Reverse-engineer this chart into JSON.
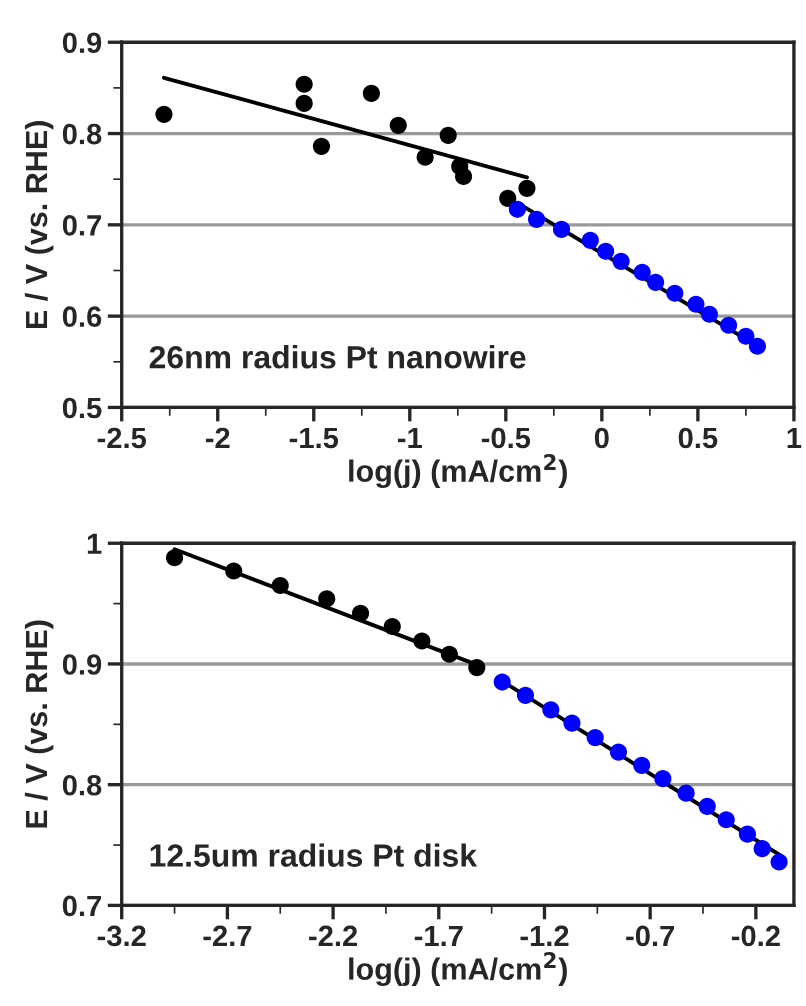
{
  "chart_data": [
    {
      "type": "scatter",
      "xlabel": "log(j) (mA/cm$^{2}$)",
      "ylabel": "E / V (vs. RHE)",
      "annotations": [
        "26nm radius Pt nanowire"
      ],
      "xlim": [
        -2.5,
        1
      ],
      "ylim": [
        0.5,
        0.9
      ],
      "xticks": [
        -2.5,
        -2,
        -1.5,
        -1,
        -0.5,
        0,
        0.5,
        1
      ],
      "yticks": [
        0.5,
        0.6,
        0.7,
        0.8,
        0.9
      ],
      "grid": "y",
      "series": [
        {
          "marker": "circle",
          "color": "#000000",
          "x": [
            -2.28,
            -1.55,
            -1.55,
            -1.46,
            -1.2,
            -1.06,
            -0.92,
            -0.8,
            -0.74,
            -0.72,
            -0.49,
            -0.39
          ],
          "values": [
            0.821,
            0.854,
            0.833,
            0.786,
            0.844,
            0.809,
            0.774,
            0.798,
            0.764,
            0.753,
            0.729,
            0.74
          ]
        },
        {
          "marker": "circle",
          "color": "#0000ff",
          "x": [
            -0.44,
            -0.34,
            -0.21,
            -0.06,
            0.02,
            0.1,
            0.21,
            0.28,
            0.38,
            0.49,
            0.56,
            0.66,
            0.75,
            0.81
          ],
          "values": [
            0.717,
            0.706,
            0.695,
            0.683,
            0.671,
            0.66,
            0.648,
            0.637,
            0.625,
            0.613,
            0.602,
            0.59,
            0.578,
            0.567
          ]
        },
        {
          "type": "line",
          "color": "#000000",
          "x": [
            -2.28,
            -0.39
          ],
          "values": [
            0.861,
            0.752
          ]
        },
        {
          "type": "line",
          "color": "#000000",
          "x": [
            -0.44,
            0.83
          ],
          "values": [
            0.724,
            0.565
          ]
        }
      ]
    },
    {
      "type": "scatter",
      "xlabel": "log(j) (mA/cm$^{2}$)",
      "ylabel": "E / V (vs. RHE)",
      "annotations": [
        "12.5um radius Pt disk"
      ],
      "xlim": [
        -3.2,
        -0.02
      ],
      "ylim": [
        0.7,
        1
      ],
      "xticks": [
        -3.2,
        -2.7,
        -2.2,
        -1.7,
        -1.2,
        -0.7,
        -0.2
      ],
      "yticks": [
        0.7,
        0.8,
        0.9,
        1
      ],
      "grid": "y",
      "series": [
        {
          "marker": "circle",
          "color": "#000000",
          "x": [
            -2.95,
            -2.67,
            -2.45,
            -2.23,
            -2.07,
            -1.92,
            -1.78,
            -1.65,
            -1.52
          ],
          "values": [
            0.988,
            0.977,
            0.965,
            0.954,
            0.942,
            0.931,
            0.919,
            0.908,
            0.897
          ]
        },
        {
          "marker": "circle",
          "color": "#0000ff",
          "x": [
            -1.4,
            -1.29,
            -1.17,
            -1.07,
            -0.96,
            -0.85,
            -0.74,
            -0.64,
            -0.53,
            -0.43,
            -0.34,
            -0.24,
            -0.17,
            -0.09
          ],
          "values": [
            0.885,
            0.874,
            0.862,
            0.851,
            0.839,
            0.827,
            0.816,
            0.805,
            0.793,
            0.782,
            0.771,
            0.759,
            0.747,
            0.736
          ]
        },
        {
          "type": "line",
          "color": "#000000",
          "x": [
            -2.95,
            -1.5
          ],
          "values": [
            0.995,
            0.898
          ]
        },
        {
          "type": "line",
          "color": "#000000",
          "x": [
            -1.42,
            -0.08
          ],
          "values": [
            0.888,
            0.741
          ]
        }
      ]
    }
  ]
}
